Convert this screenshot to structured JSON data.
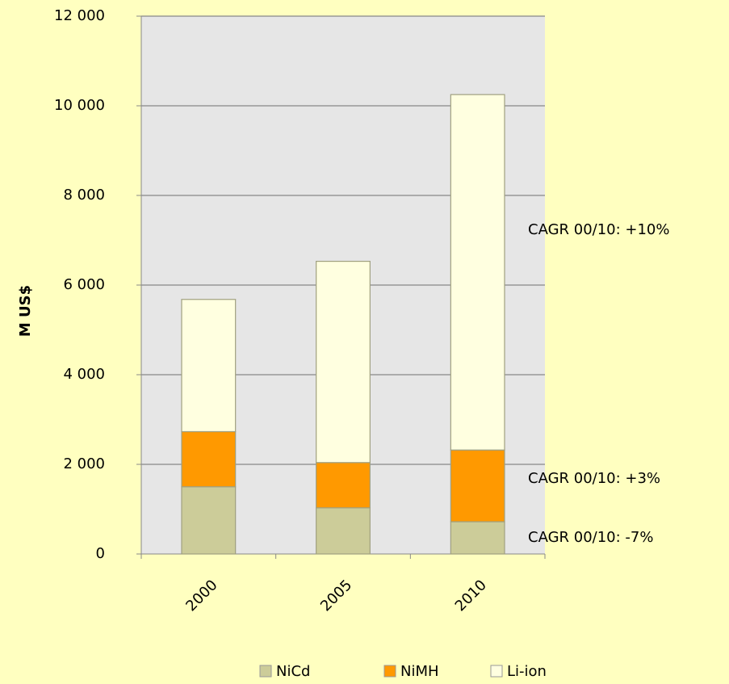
{
  "chart_data": {
    "type": "stacked_bar",
    "y_label": "M US$",
    "categories": [
      "2000",
      "2005",
      "2010"
    ],
    "series": [
      {
        "name": "NiCd",
        "color": "#cccc99",
        "values": [
          1500,
          1030,
          720
        ]
      },
      {
        "name": "NiMH",
        "color": "#ff9900",
        "values": [
          1230,
          1010,
          1600
        ]
      },
      {
        "name": "Li-ion",
        "color": "#ffffe0",
        "values": [
          2950,
          4490,
          7930
        ]
      }
    ],
    "annotations": [
      "CAGR 00/10: -7%",
      "CAGR 00/10: +3%",
      "CAGR 00/10: +10%"
    ],
    "ylim": [
      0,
      12000
    ],
    "yticks": [
      0,
      {
        "value": 2000,
        "label": "2 000"
      },
      {
        "value": 4000,
        "label": "4 000"
      },
      {
        "value": 6000,
        "label": "6 000"
      },
      {
        "value": 8000,
        "label": "8 000"
      },
      {
        "value": 10000,
        "label": "10 000"
      },
      {
        "value": 12000,
        "label": "12 000"
      }
    ],
    "grid": true,
    "legend": "bottom"
  }
}
